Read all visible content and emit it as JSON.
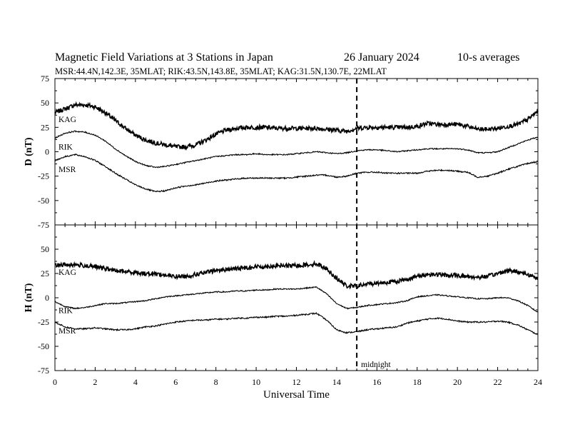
{
  "header": {
    "title": "Magnetic Field Variations at 3 Stations in Japan",
    "date": "26 January  2024",
    "averaging": "10-s averages",
    "stations_line": "MSR:44.4N,142.3E, 35MLAT;  RIK:43.5N,143.8E, 35MLAT;  KAG:31.5N,130.7E, 22MLAT"
  },
  "chart_data": [
    {
      "type": "line",
      "panel": "top",
      "ylabel": "D (nT)",
      "ylim": [
        -75,
        75
      ],
      "yticks": [
        -75,
        -50,
        -25,
        0,
        25,
        50,
        75
      ],
      "xlim": [
        0,
        24
      ],
      "x": [
        0,
        0.5,
        1,
        1.5,
        2,
        2.5,
        3,
        3.5,
        4,
        4.5,
        5,
        5.5,
        6,
        6.5,
        7,
        7.5,
        8,
        8.5,
        9,
        9.5,
        10,
        10.5,
        11,
        11.5,
        12,
        12.5,
        13,
        13.5,
        14,
        14.5,
        15,
        15.5,
        16,
        16.5,
        17,
        17.5,
        18,
        18.5,
        19,
        19.5,
        20,
        20.5,
        21,
        21.5,
        22,
        22.5,
        23,
        23.5,
        24
      ],
      "series": [
        {
          "name": "KAG",
          "values": [
            40,
            44,
            48,
            48,
            46,
            40,
            32,
            24,
            17,
            12,
            9,
            7,
            5,
            5,
            7,
            12,
            18,
            22,
            24,
            25,
            25,
            25,
            24,
            24,
            24,
            24,
            24,
            23,
            22,
            21,
            24,
            25,
            25,
            25,
            25,
            25,
            26,
            29,
            28,
            28,
            28,
            26,
            23,
            23,
            24,
            26,
            28,
            33,
            42
          ]
        },
        {
          "name": "RIK",
          "values": [
            14,
            19,
            21,
            20,
            17,
            11,
            3,
            -4,
            -10,
            -14,
            -16,
            -15,
            -13,
            -11,
            -9,
            -7,
            -5,
            -4,
            -3,
            -3,
            -2,
            -3,
            -3,
            -3,
            -2,
            -1,
            0,
            -1,
            -2,
            -1,
            1,
            2,
            2,
            1,
            0,
            1,
            2,
            3,
            3,
            3,
            3,
            2,
            -1,
            -1,
            0,
            4,
            8,
            12,
            15
          ]
        },
        {
          "name": "MSR",
          "values": [
            -9,
            -5,
            -3,
            -5,
            -9,
            -15,
            -22,
            -28,
            -34,
            -38,
            -41,
            -40,
            -37,
            -35,
            -34,
            -32,
            -30,
            -29,
            -28,
            -27,
            -27,
            -27,
            -27,
            -27,
            -26,
            -25,
            -24,
            -24,
            -26,
            -25,
            -22,
            -21,
            -21,
            -22,
            -22,
            -22,
            -22,
            -20,
            -19,
            -19,
            -20,
            -21,
            -26,
            -25,
            -22,
            -18,
            -15,
            -12,
            -10
          ]
        }
      ]
    },
    {
      "type": "line",
      "panel": "bottom",
      "ylabel": "H (nT)",
      "ylim": [
        -75,
        75
      ],
      "yticks": [
        -75,
        -50,
        -25,
        0,
        25,
        50
      ],
      "xlim": [
        0,
        24
      ],
      "xlabel": "Universal Time",
      "xticks": [
        0,
        2,
        4,
        6,
        8,
        10,
        12,
        14,
        16,
        18,
        20,
        22,
        24
      ],
      "x": [
        0,
        0.5,
        1,
        1.5,
        2,
        2.5,
        3,
        3.5,
        4,
        4.5,
        5,
        5.5,
        6,
        6.5,
        7,
        7.5,
        8,
        8.5,
        9,
        9.5,
        10,
        10.5,
        11,
        11.5,
        12,
        12.5,
        13,
        13.5,
        14,
        14.5,
        15,
        15.5,
        16,
        16.5,
        17,
        17.5,
        18,
        18.5,
        19,
        19.5,
        20,
        20.5,
        21,
        21.5,
        22,
        22.5,
        23,
        23.5,
        24
      ],
      "series": [
        {
          "name": "KAG",
          "values": [
            33,
            34,
            34,
            33,
            32,
            30,
            28,
            27,
            26,
            25,
            25,
            23,
            22,
            22,
            24,
            26,
            28,
            29,
            30,
            31,
            32,
            32,
            33,
            33,
            33,
            34,
            35,
            30,
            20,
            12,
            12,
            14,
            15,
            16,
            17,
            19,
            22,
            24,
            24,
            23,
            23,
            22,
            21,
            22,
            25,
            28,
            27,
            24,
            20
          ]
        },
        {
          "name": "RIK",
          "values": [
            -4,
            -9,
            -11,
            -10,
            -8,
            -6,
            -6,
            -5,
            -4,
            -3,
            -1,
            1,
            2,
            3,
            4,
            5,
            6,
            6,
            7,
            7,
            8,
            8,
            9,
            9,
            9,
            10,
            11,
            4,
            -6,
            -11,
            -10,
            -8,
            -7,
            -6,
            -5,
            -3,
            1,
            2,
            3,
            2,
            1,
            0,
            -1,
            -1,
            0,
            0,
            -3,
            -8,
            -15
          ]
        },
        {
          "name": "MSR",
          "values": [
            -25,
            -30,
            -32,
            -32,
            -31,
            -32,
            -33,
            -33,
            -32,
            -30,
            -29,
            -27,
            -25,
            -24,
            -23,
            -23,
            -22,
            -22,
            -21,
            -21,
            -20,
            -20,
            -19,
            -19,
            -18,
            -17,
            -16,
            -23,
            -33,
            -36,
            -35,
            -33,
            -32,
            -31,
            -30,
            -26,
            -24,
            -22,
            -21,
            -22,
            -24,
            -25,
            -25,
            -25,
            -24,
            -25,
            -28,
            -33,
            -38
          ]
        }
      ]
    }
  ],
  "annotations": {
    "midnight_x": 15,
    "midnight_label": "midnight"
  }
}
